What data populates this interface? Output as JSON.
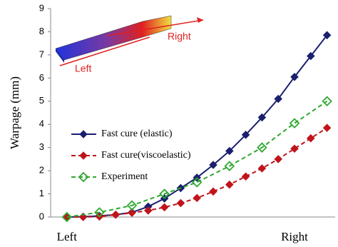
{
  "chart_data": {
    "type": "line",
    "y_label": "Warpage (mm)",
    "annotations": [
      "Left",
      "Right"
    ],
    "x": [
      0,
      1,
      2,
      3,
      4,
      5,
      6,
      7,
      8,
      9,
      10,
      11,
      12,
      13,
      14,
      15,
      16
    ],
    "xlim": [
      -1,
      16.5
    ],
    "xticks": [
      {
        "value": 0,
        "label": "Left"
      },
      {
        "value": 14,
        "label": "Right"
      }
    ],
    "ylim": [
      0,
      9
    ],
    "yticks": [
      0,
      1,
      2,
      3,
      4,
      5,
      6,
      7,
      8,
      9
    ],
    "series": [
      {
        "name": "Fast cure (elastic)",
        "color": "#1a1f6e",
        "dashed": false,
        "marker_fill": true,
        "values": [
          0,
          0.01,
          0.05,
          0.1,
          0.2,
          0.45,
          0.8,
          1.25,
          1.7,
          2.25,
          2.85,
          3.55,
          4.3,
          5.1,
          6.05,
          6.95,
          7.85
        ]
      },
      {
        "name": "Fast cure(viscoelastic)",
        "color": "#c0141b",
        "dashed": true,
        "marker_fill": true,
        "values": [
          0,
          0,
          0.02,
          0.1,
          0.18,
          0.28,
          0.42,
          0.6,
          0.82,
          1.1,
          1.4,
          1.75,
          2.1,
          2.5,
          2.95,
          3.4,
          3.85
        ]
      },
      {
        "name": "Experiment",
        "color": "#2fa82f",
        "dashed": true,
        "marker_fill": false,
        "x": [
          0,
          2,
          4,
          6,
          8,
          10,
          12,
          14,
          16
        ],
        "values": [
          0,
          0.2,
          0.5,
          1.0,
          1.5,
          2.2,
          3.0,
          4.05,
          5.0
        ]
      }
    ]
  }
}
